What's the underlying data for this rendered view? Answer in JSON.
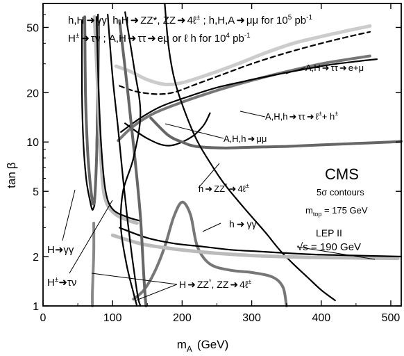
{
  "chart_data": {
    "type": "line",
    "title": "",
    "xlabel_main": "m",
    "xlabel_sub": "A",
    "xlabel_unit": "(GeV)",
    "ylabel_main": "tan",
    "ylabel_symbol": "β",
    "xlim": [
      0,
      515
    ],
    "ylim": [
      1,
      70
    ],
    "yscale": "log",
    "grid": false,
    "x_ticks": [
      0,
      100,
      200,
      300,
      400,
      500
    ],
    "x_tick_labels": [
      "0",
      "100",
      "200",
      "300",
      "400",
      "500"
    ],
    "y_ticks": [
      1,
      2,
      5,
      10,
      20,
      50
    ],
    "y_tick_labels": [
      "1",
      "2",
      "5",
      "10",
      "20",
      "50"
    ],
    "header": {
      "line1_a": "h,H",
      "line1_b": "γγ;  h,H",
      "line1_c": "ZZ",
      "line1_d": "*, ZZ",
      "line1_e": "4ℓ",
      "line1_f": "±",
      "line1_g": " ; h,H,A",
      "line1_h": "μμ  for 10",
      "line1_i": "5",
      "line1_j": " pb",
      "line1_k": "-1",
      "line2_a": "H",
      "line2_b": "±",
      "line2_c": "τν ; A,H",
      "line2_d": "ττ",
      "line2_e": "eμ  or  ℓ h  for 10",
      "line2_f": "4",
      "line2_g": " pb",
      "line2_h": "-1"
    },
    "legend": {
      "cms": "CMS",
      "contours": "5σ contours",
      "mtop_a": "m",
      "mtop_b": "top",
      "mtop_c": " = 175 GeV",
      "lep": "LEP II",
      "sqrt": "√s = 190 GeV"
    },
    "labels": {
      "a_tautau_emu_a": "A,H",
      "a_tautau_emu_b": "ττ",
      "a_tautau_emu_c": "e+μ",
      "ahh_tautau_a": "A,H,h",
      "ahh_tautau_b": "ττ",
      "ahh_tautau_c": "ℓ",
      "ahh_tautau_d": "±",
      "ahh_tautau_e": "+ h",
      "ahh_tautau_f": "±",
      "ahh_mumu_a": "A,H,h",
      "ahh_mumu_b": "μμ",
      "h_zz_a": "h",
      "h_zz_b": "ZZ",
      "h_zz_c": "*",
      "h_zz_d": "4ℓ",
      "h_zz_e": "±",
      "h_gg_a": "h",
      "h_gg_b": "γγ",
      "H_gg_a": "H",
      "H_gg_b": "γγ",
      "H_taunu_a": "H",
      "H_taunu_b": "±",
      "H_taunu_c": "τν",
      "H_zz_bottom_a": "H",
      "H_zz_bottom_b": "ZZ",
      "H_zz_bottom_c": "*",
      "H_zz_bottom_d": ", ZZ",
      "H_zz_bottom_e": "4ℓ",
      "H_zz_bottom_f": "±"
    },
    "series": [
      {
        "id": "A_tautau_emu",
        "style": "dashed",
        "color": "#000000",
        "x": [
          110,
          130,
          150,
          170,
          190,
          220,
          260,
          300,
          340,
          380,
          410,
          440,
          470
        ],
        "y": [
          22,
          20.5,
          19.8,
          19.6,
          20.2,
          22.5,
          26,
          30,
          34,
          38,
          41,
          44,
          47
        ]
      },
      {
        "id": "A_tautau_emu_light",
        "style": "solid",
        "color": "#cccccc",
        "x": [
          105,
          125,
          150,
          175,
          200,
          240,
          280,
          320,
          360,
          400,
          440,
          470
        ],
        "y": [
          29,
          27,
          24,
          22.5,
          23,
          26,
          30,
          35,
          40,
          44,
          48,
          51
        ]
      },
      {
        "id": "AHh_tautau_gray",
        "style": "solid",
        "color": "#777777",
        "x": [
          108,
          130,
          160,
          200,
          240,
          280,
          320,
          360,
          400,
          440,
          470
        ],
        "y": [
          10.2,
          12.5,
          15,
          17.5,
          20,
          22.5,
          25,
          27.5,
          30,
          32,
          33.5
        ]
      },
      {
        "id": "AHh_tautau_black",
        "style": "solid",
        "color": "#000000",
        "x": [
          112,
          140,
          170,
          210,
          250,
          290,
          330,
          370,
          410,
          450,
          480
        ],
        "y": [
          11.5,
          14,
          16.5,
          19,
          21.5,
          23.5,
          25.5,
          27.5,
          29.5,
          31,
          32
        ]
      },
      {
        "id": "AHh_mumu",
        "style": "solid",
        "color": "#000000",
        "x": [
          118,
          150,
          180,
          210,
          230,
          240
        ],
        "y": [
          13,
          10.5,
          9.5,
          10.5,
          12.5,
          15
        ]
      },
      {
        "id": "h_ZZ",
        "style": "solid",
        "color": "#666666",
        "x": [
          155,
          180,
          200,
          220,
          260,
          300,
          350,
          400,
          450,
          500,
          515
        ],
        "y": [
          14,
          11,
          10,
          9.4,
          9.2,
          9.3,
          9.4,
          9.6,
          9.8,
          10,
          10.1
        ]
      },
      {
        "id": "CMS_curve",
        "style": "solid",
        "color": "#000000",
        "x": [
          175,
          180,
          188,
          200,
          220,
          240,
          260,
          280,
          300,
          320,
          340,
          360,
          380,
          400,
          420
        ],
        "y": [
          70,
          40,
          25,
          17,
          10.5,
          7.5,
          5.6,
          4.4,
          3.5,
          2.8,
          2.2,
          1.8,
          1.5,
          1.25,
          1.08
        ]
      },
      {
        "id": "h_gg_loop",
        "style": "solid",
        "color": "#777777",
        "x": [
          130,
          145,
          160,
          175,
          188,
          200,
          212,
          222,
          240,
          270,
          300,
          330,
          345,
          350
        ],
        "y": [
          1.1,
          1.25,
          1.6,
          2.3,
          3.5,
          4.3,
          3.6,
          2.3,
          1.8,
          1.65,
          1.6,
          1.5,
          1.3,
          1.0
        ]
      },
      {
        "id": "LEP_light",
        "style": "solid",
        "color": "#bbbbbb",
        "x": [
          100,
          140,
          180,
          220,
          260,
          300,
          340,
          380,
          420,
          460,
          510
        ],
        "y": [
          2.7,
          2.4,
          2.25,
          2.15,
          2.08,
          2.03,
          2.0,
          1.98,
          1.97,
          1.96,
          1.95
        ]
      },
      {
        "id": "LEP_black",
        "style": "solid",
        "color": "#000000",
        "x": [
          110,
          150,
          190,
          230,
          270,
          310,
          350,
          390,
          430,
          470,
          515
        ],
        "y": [
          3.0,
          2.6,
          2.4,
          2.3,
          2.2,
          2.15,
          2.1,
          2.06,
          2.04,
          2.02,
          2.0
        ]
      },
      {
        "id": "H_gg_left",
        "style": "solid",
        "color": "#000000",
        "x": [
          56,
          56,
          58,
          62,
          67,
          72,
          76,
          79
        ],
        "y": [
          55,
          20,
          10,
          6,
          4.5,
          3.9,
          6,
          60
        ]
      },
      {
        "id": "H_gg_left_gray",
        "style": "solid",
        "color": "#666666",
        "x": [
          60,
          61,
          64,
          68,
          72,
          75,
          78,
          80
        ],
        "y": [
          58,
          20,
          9,
          5.5,
          4.2,
          5,
          12,
          55
        ]
      },
      {
        "id": "H_taunu_light",
        "style": "solid",
        "color": "#bbbbbb",
        "x": [
          74,
          78,
          82,
          86,
          92,
          105,
          125,
          135
        ],
        "y": [
          58,
          25,
          10,
          5.5,
          4.2,
          3.6,
          3.3,
          3.2
        ]
      },
      {
        "id": "H_taunu_black",
        "style": "solid",
        "color": "#000000",
        "x": [
          77,
          80,
          84,
          90,
          100,
          120,
          140
        ],
        "y": [
          58,
          20,
          9,
          5,
          3.9,
          3.5,
          3.3
        ]
      },
      {
        "id": "vertical_gray",
        "style": "solid",
        "color": "#888888",
        "x": [
          73,
          73,
          72,
          71,
          71
        ],
        "y": [
          3.2,
          2.2,
          1.6,
          1.2,
          1.0
        ]
      },
      {
        "id": "H_ZZ_bottom_black",
        "style": "solid",
        "color": "#000000",
        "x": [
          93,
          100,
          108,
          115,
          122,
          128,
          133,
          137,
          140
        ],
        "y": [
          60,
          25,
          12,
          6,
          3.2,
          2.0,
          1.4,
          1.1,
          1.0
        ]
      },
      {
        "id": "H_ZZ_bottom_gray",
        "style": "solid",
        "color": "#666666",
        "x": [
          110,
          122,
          132,
          140,
          145,
          148
        ],
        "y": [
          55,
          20,
          8,
          3.5,
          1.5,
          1.0
        ]
      },
      {
        "id": "S_curve",
        "style": "solid",
        "color": "#000000",
        "x": [
          118,
          130,
          140,
          130,
          115,
          112,
          120,
          130,
          135
        ],
        "y": [
          62,
          30,
          15,
          8,
          5,
          3,
          1.8,
          1.2,
          1.0
        ]
      }
    ]
  }
}
